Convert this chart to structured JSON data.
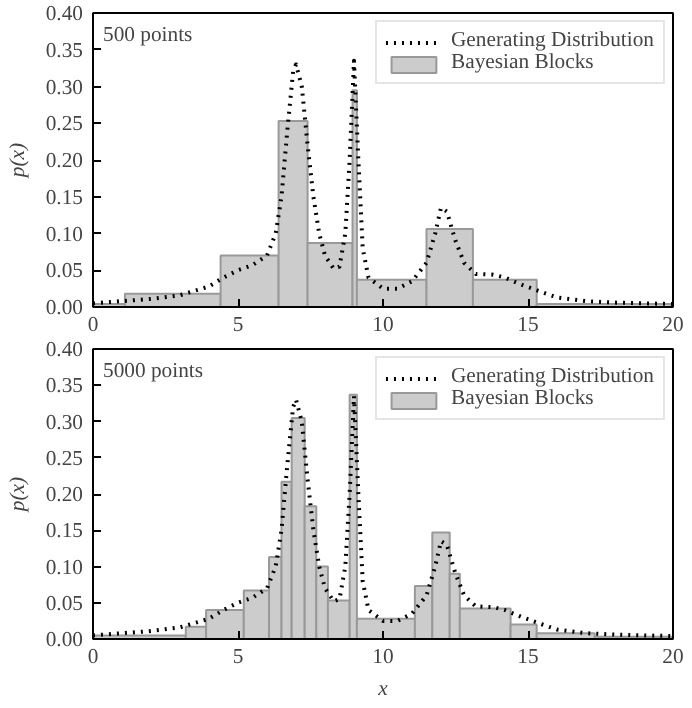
{
  "chart_data": [
    {
      "type": "histogram",
      "ylabel": "p(x)",
      "annotations": [
        "500 points"
      ],
      "legend": "top right",
      "grid": false,
      "xlim": [
        0,
        20
      ],
      "xticks": [
        0,
        5,
        10,
        15,
        20
      ],
      "ylim": [
        0,
        0.4
      ],
      "yticks": [
        {
          "value": 0,
          "label": "0.00"
        },
        {
          "value": 0.05,
          "label": "0.05"
        },
        {
          "value": 0.1,
          "label": "0.10"
        },
        {
          "value": 0.15,
          "label": "0.15"
        },
        {
          "value": 0.2,
          "label": "0.20"
        },
        {
          "value": 0.25,
          "label": "0.25"
        },
        {
          "value": 0.3,
          "label": "0.30"
        },
        {
          "value": 0.35,
          "label": "0.35"
        },
        {
          "value": 0.4,
          "label": "0.40"
        }
      ],
      "series": [
        {
          "type": "line",
          "name": "Generating Distribution",
          "color": "#000000",
          "line_style": "dotted",
          "x": [
            0,
            1,
            2,
            3,
            4,
            4.5,
            5,
            5.5,
            6,
            6.3,
            6.5,
            6.7,
            6.9,
            7.0,
            7.2,
            7.4,
            7.6,
            7.8,
            8.0,
            8.3,
            8.5,
            8.7,
            8.85,
            9.0,
            9.15,
            9.3,
            9.5,
            10,
            10.5,
            11,
            11.5,
            11.8,
            12.0,
            12.2,
            12.5,
            12.8,
            13.2,
            13.8,
            14.2,
            14.8,
            15.5,
            16,
            17,
            18,
            19,
            20
          ],
          "values": [
            0.005,
            0.008,
            0.011,
            0.016,
            0.028,
            0.04,
            0.05,
            0.057,
            0.07,
            0.1,
            0.15,
            0.24,
            0.32,
            0.33,
            0.3,
            0.22,
            0.15,
            0.1,
            0.07,
            0.052,
            0.055,
            0.1,
            0.2,
            0.335,
            0.2,
            0.08,
            0.04,
            0.025,
            0.025,
            0.035,
            0.06,
            0.1,
            0.135,
            0.13,
            0.09,
            0.06,
            0.045,
            0.044,
            0.04,
            0.03,
            0.02,
            0.013,
            0.008,
            0.006,
            0.005,
            0.004
          ]
        },
        {
          "name": "Bayesian Blocks",
          "color": "#cccccc",
          "bins": [
            0,
            1.1,
            4.4,
            6.4,
            7.4,
            8.95,
            9.1,
            11.5,
            13.1,
            15.3,
            20
          ],
          "values": [
            0.004,
            0.018,
            0.07,
            0.253,
            0.087,
            0.295,
            0.037,
            0.106,
            0.037,
            0.004
          ]
        }
      ]
    },
    {
      "type": "histogram",
      "xlabel": "x",
      "ylabel": "p(x)",
      "annotations": [
        "5000 points"
      ],
      "legend": "top right",
      "grid": false,
      "xlim": [
        0,
        20
      ],
      "xticks": [
        0,
        5,
        10,
        15,
        20
      ],
      "ylim": [
        0,
        0.4
      ],
      "yticks": [
        {
          "value": 0,
          "label": "0.00"
        },
        {
          "value": 0.05,
          "label": "0.05"
        },
        {
          "value": 0.1,
          "label": "0.10"
        },
        {
          "value": 0.15,
          "label": "0.15"
        },
        {
          "value": 0.2,
          "label": "0.20"
        },
        {
          "value": 0.25,
          "label": "0.25"
        },
        {
          "value": 0.3,
          "label": "0.30"
        },
        {
          "value": 0.35,
          "label": "0.35"
        },
        {
          "value": 0.4,
          "label": "0.40"
        }
      ],
      "series": [
        {
          "type": "line",
          "name": "Generating Distribution",
          "color": "#000000",
          "line_style": "dotted",
          "x": [
            0,
            1,
            2,
            3,
            4,
            4.5,
            5,
            5.5,
            6,
            6.3,
            6.5,
            6.7,
            6.9,
            7.0,
            7.2,
            7.4,
            7.6,
            7.8,
            8.0,
            8.3,
            8.5,
            8.7,
            8.85,
            9.0,
            9.15,
            9.3,
            9.5,
            10,
            10.5,
            11,
            11.5,
            11.8,
            12.0,
            12.2,
            12.5,
            12.8,
            13.2,
            13.8,
            14.2,
            14.8,
            15.5,
            16,
            17,
            18,
            19,
            20
          ],
          "values": [
            0.005,
            0.008,
            0.011,
            0.016,
            0.028,
            0.04,
            0.05,
            0.057,
            0.07,
            0.1,
            0.15,
            0.24,
            0.32,
            0.33,
            0.3,
            0.22,
            0.15,
            0.1,
            0.07,
            0.052,
            0.055,
            0.1,
            0.2,
            0.335,
            0.2,
            0.08,
            0.04,
            0.025,
            0.025,
            0.035,
            0.06,
            0.1,
            0.135,
            0.13,
            0.09,
            0.06,
            0.045,
            0.044,
            0.04,
            0.03,
            0.02,
            0.013,
            0.008,
            0.006,
            0.005,
            0.004
          ]
        },
        {
          "name": "Bayesian Blocks",
          "color": "#cccccc",
          "bins": [
            0,
            3.2,
            3.9,
            5.2,
            6.07,
            6.5,
            6.85,
            7.3,
            7.7,
            8.1,
            8.85,
            9.1,
            11.1,
            11.7,
            12.3,
            12.65,
            14.4,
            15.3,
            17.3,
            20
          ],
          "values": [
            0.005,
            0.017,
            0.04,
            0.067,
            0.113,
            0.217,
            0.305,
            0.183,
            0.1,
            0.053,
            0.337,
            0.028,
            0.073,
            0.147,
            0.09,
            0.042,
            0.02,
            0.008,
            0.003
          ]
        }
      ]
    }
  ]
}
